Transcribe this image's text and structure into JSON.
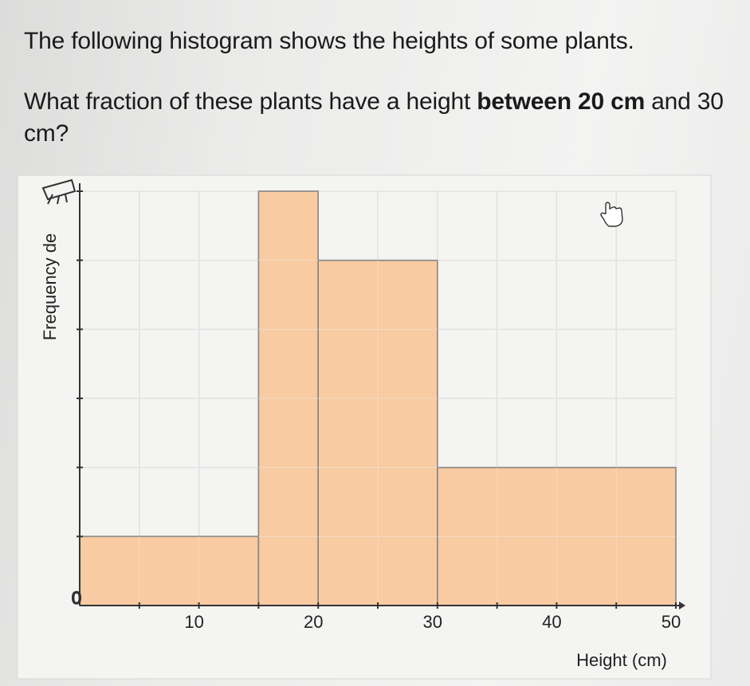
{
  "question": {
    "line1": "The following histogram shows the heights of some plants.",
    "line2_prefix": "What fraction of these plants have a height ",
    "line2_bold": "between 20 cm",
    "line2_suffix": " and 30 cm?"
  },
  "chart_data": {
    "type": "bar",
    "title": "",
    "xlabel": "Height (cm)",
    "ylabel": "Frequency de",
    "origin_label": "0",
    "x_tick_labels": [
      "10",
      "20",
      "30",
      "40",
      "50"
    ],
    "xlim": [
      0,
      50
    ],
    "ylim": [
      0,
      6
    ],
    "grid": true,
    "bins": [
      {
        "x_start": 0,
        "x_end": 15,
        "value": 1
      },
      {
        "x_start": 15,
        "x_end": 20,
        "value": 6
      },
      {
        "x_start": 20,
        "x_end": 30,
        "value": 5
      },
      {
        "x_start": 30,
        "x_end": 50,
        "value": 2
      }
    ],
    "colors": {
      "bar_fill": "#f7c79b",
      "bar_stroke": "#5a5a5a",
      "grid": "#cfcfcf"
    }
  }
}
